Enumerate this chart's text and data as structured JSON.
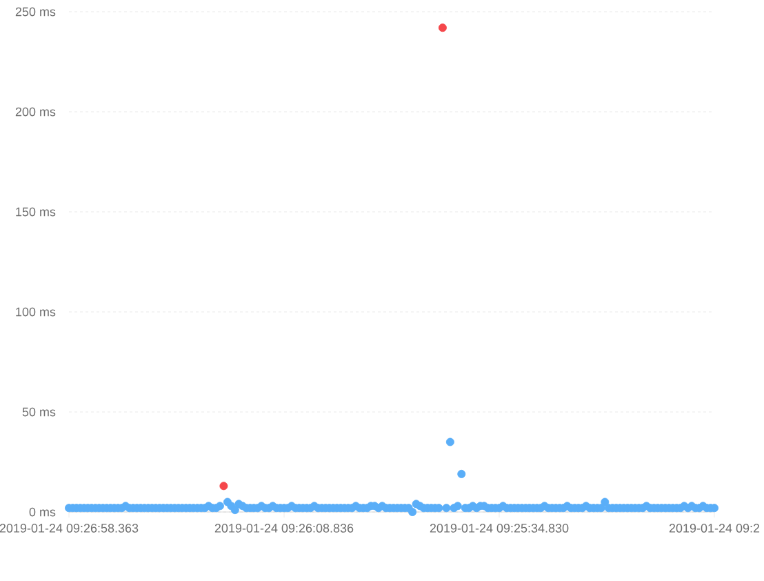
{
  "chart_data": {
    "type": "scatter",
    "categories": [
      "2019-01-24 09:26:58.363",
      null,
      null,
      null,
      null,
      null,
      null,
      null,
      null,
      null,
      null,
      null,
      null,
      null,
      null,
      null,
      null,
      null,
      null,
      null,
      null,
      null,
      null,
      null,
      null,
      null,
      null,
      null,
      null,
      null,
      null,
      null,
      null,
      null,
      null,
      null,
      null,
      null,
      null,
      null,
      null,
      null,
      null,
      null,
      null,
      null,
      null,
      null,
      null,
      null,
      null,
      null,
      null,
      null,
      null,
      null,
      null,
      "2019-01-24 09:26:08.836",
      null,
      null,
      null,
      null,
      null,
      null,
      null,
      null,
      null,
      null,
      null,
      null,
      null,
      null,
      null,
      null,
      null,
      null,
      null,
      null,
      null,
      null,
      null,
      null,
      null,
      null,
      null,
      null,
      null,
      null,
      null,
      null,
      null,
      null,
      null,
      null,
      null,
      null,
      null,
      null,
      null,
      null,
      null,
      null,
      null,
      null,
      null,
      null,
      null,
      null,
      null,
      null,
      null,
      null,
      null,
      null,
      "2019-01-24 09:25:34.830",
      null,
      null,
      null,
      null,
      null,
      null,
      null,
      null,
      null,
      null,
      null,
      null,
      null,
      null,
      null,
      null,
      null,
      null,
      null,
      null,
      null,
      null,
      null,
      null,
      null,
      null,
      null,
      null,
      null,
      null,
      null,
      null,
      null,
      null,
      null,
      null,
      null,
      null,
      null,
      null,
      null,
      null,
      null,
      null,
      null,
      null,
      null,
      null,
      null,
      null,
      null,
      null,
      null,
      null,
      null,
      null,
      "2019-01-24 09:2"
    ],
    "series": [
      {
        "color": "#5aaef8",
        "values": [
          2,
          2,
          2,
          2,
          2,
          2,
          2,
          2,
          2,
          2,
          2,
          2,
          2,
          2,
          2,
          3,
          2,
          2,
          2,
          2,
          2,
          2,
          2,
          2,
          2,
          2,
          2,
          2,
          2,
          2,
          2,
          2,
          2,
          2,
          2,
          2,
          2,
          3,
          2,
          2,
          3,
          null,
          5,
          3,
          1,
          4,
          3,
          2,
          2,
          2,
          2,
          3,
          2,
          2,
          3,
          2,
          2,
          2,
          2,
          3,
          2,
          2,
          2,
          2,
          2,
          3,
          2,
          2,
          2,
          2,
          2,
          2,
          2,
          2,
          2,
          2,
          3,
          2,
          2,
          2,
          3,
          3,
          2,
          3,
          2,
          2,
          2,
          2,
          2,
          2,
          2,
          0,
          4,
          3,
          2,
          2,
          2,
          2,
          2,
          null,
          2,
          35,
          2,
          3,
          19,
          2,
          2,
          3,
          2,
          3,
          3,
          2,
          2,
          2,
          2,
          3,
          2,
          2,
          2,
          2,
          2,
          2,
          2,
          2,
          2,
          2,
          3,
          2,
          2,
          2,
          2,
          2,
          3,
          2,
          2,
          2,
          2,
          3,
          2,
          2,
          2,
          2,
          5,
          2,
          2,
          2,
          2,
          2,
          2,
          2,
          2,
          2,
          2,
          3,
          2,
          2,
          2,
          2,
          2,
          2,
          2,
          2,
          2,
          3,
          2,
          3,
          2,
          2,
          3,
          2,
          2,
          2
        ]
      },
      {
        "color": "#f5474b",
        "values": [
          null,
          null,
          null,
          null,
          null,
          null,
          null,
          null,
          null,
          null,
          null,
          null,
          null,
          null,
          null,
          null,
          null,
          null,
          null,
          null,
          null,
          null,
          null,
          null,
          null,
          null,
          null,
          null,
          null,
          null,
          null,
          null,
          null,
          null,
          null,
          null,
          null,
          null,
          null,
          null,
          null,
          13,
          null,
          null,
          null,
          null,
          null,
          null,
          null,
          null,
          null,
          null,
          null,
          null,
          null,
          null,
          null,
          null,
          null,
          null,
          null,
          null,
          null,
          null,
          null,
          null,
          null,
          null,
          null,
          null,
          null,
          null,
          null,
          null,
          null,
          null,
          null,
          null,
          null,
          null,
          null,
          null,
          null,
          null,
          null,
          null,
          null,
          null,
          null,
          null,
          null,
          null,
          null,
          null,
          null,
          null,
          null,
          null,
          null,
          242,
          null,
          null,
          null,
          null,
          null,
          null,
          null,
          null,
          null,
          null,
          null,
          null,
          null,
          null,
          null,
          null,
          null,
          null,
          null,
          null,
          null,
          null,
          null,
          null,
          null,
          null,
          null,
          null,
          null,
          null,
          null,
          null,
          null,
          null,
          null,
          null,
          null,
          null,
          null,
          null,
          null,
          null,
          null,
          null,
          null,
          null,
          null,
          null,
          null,
          null,
          null,
          null,
          null,
          null,
          null,
          null,
          null,
          null,
          null,
          null,
          null,
          null,
          null,
          null,
          null,
          null,
          null,
          null,
          null,
          null,
          null,
          null
        ]
      }
    ],
    "ylim": [
      0,
      250
    ],
    "yticks": [
      {
        "value": 0,
        "label": "0 ms"
      },
      {
        "value": 50,
        "label": "50 ms"
      },
      {
        "value": 100,
        "label": "100 ms"
      },
      {
        "value": 150,
        "label": "150 ms"
      },
      {
        "value": 200,
        "label": "200 ms"
      },
      {
        "value": 250,
        "label": "250 ms"
      }
    ],
    "grid": "y",
    "marker": "circle"
  }
}
